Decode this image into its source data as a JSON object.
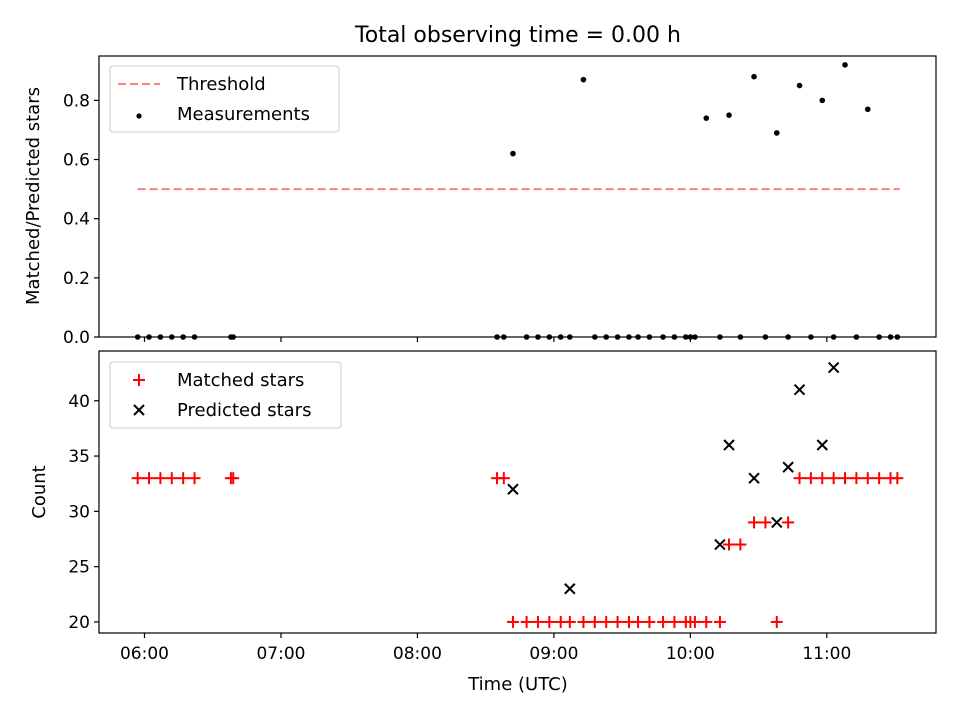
{
  "chart_data": [
    {
      "type": "scatter",
      "title": "Total observing time = 0.00 h",
      "xlabel": "",
      "ylabel": "Matched/Predicted stars",
      "xlim": [
        "05:40",
        "11:48"
      ],
      "ylim": [
        0,
        0.95
      ],
      "yticks": [
        0.0,
        0.2,
        0.4,
        0.6,
        0.8
      ],
      "ytick_labels": [
        "0.0",
        "0.2",
        "0.4",
        "0.6",
        "0.8"
      ],
      "grid": false,
      "legend": "upper-left",
      "legend_entries": [
        "Threshold",
        "Measurements"
      ],
      "threshold": {
        "name": "Threshold",
        "y": 0.5,
        "x_range": [
          "05:57",
          "11:32"
        ],
        "color": "#ff7f7f"
      },
      "series": [
        {
          "name": "Measurements",
          "color": "#000000",
          "x": [
            "05:57",
            "06:02",
            "06:07",
            "06:12",
            "06:17",
            "06:22",
            "06:38",
            "06:39",
            "08:35",
            "08:38",
            "08:42",
            "08:48",
            "08:53",
            "08:58",
            "09:03",
            "09:07",
            "09:13",
            "09:18",
            "09:23",
            "09:28",
            "09:33",
            "09:37",
            "09:42",
            "09:48",
            "09:53",
            "09:58",
            "10:00",
            "10:02",
            "10:07",
            "10:13",
            "10:17",
            "10:22",
            "10:28",
            "10:33",
            "10:38",
            "10:43",
            "10:48",
            "10:53",
            "10:58",
            "11:03",
            "11:08",
            "11:13",
            "11:18",
            "11:23",
            "11:28",
            "11:31"
          ],
          "y": [
            0,
            0,
            0,
            0,
            0,
            0,
            0,
            0,
            0,
            0,
            0.62,
            0,
            0,
            0,
            0,
            0,
            0.87,
            0,
            0,
            0,
            0,
            0,
            0,
            0,
            0,
            0,
            0,
            0,
            0.74,
            0,
            0.75,
            0,
            0.88,
            0,
            0.69,
            0,
            0.85,
            0,
            0.8,
            0,
            0.92,
            0,
            0.77,
            0,
            0,
            0
          ]
        }
      ]
    },
    {
      "type": "scatter",
      "title": "",
      "xlabel": "Time (UTC)",
      "ylabel": "Count",
      "xlim": [
        "05:40",
        "11:48"
      ],
      "ylim": [
        19,
        44.5
      ],
      "yticks": [
        20,
        25,
        30,
        35,
        40
      ],
      "ytick_labels": [
        "20",
        "25",
        "30",
        "35",
        "40"
      ],
      "xticks": [
        "06:00",
        "07:00",
        "08:00",
        "09:00",
        "10:00",
        "11:00"
      ],
      "xtick_labels": [
        "06:00",
        "07:00",
        "08:00",
        "09:00",
        "10:00",
        "11:00"
      ],
      "grid": false,
      "legend": "upper-left",
      "legend_entries": [
        "Matched stars",
        "Predicted stars"
      ],
      "series": [
        {
          "name": "Matched stars",
          "marker": "plus",
          "color": "#ff0000",
          "x": [
            "05:57",
            "06:02",
            "06:07",
            "06:12",
            "06:17",
            "06:22",
            "06:38",
            "06:39",
            "08:35",
            "08:38",
            "08:42",
            "08:48",
            "08:53",
            "08:58",
            "09:03",
            "09:07",
            "09:13",
            "09:18",
            "09:23",
            "09:28",
            "09:33",
            "09:37",
            "09:42",
            "09:48",
            "09:53",
            "09:58",
            "10:00",
            "10:02",
            "10:07",
            "10:13",
            "10:17",
            "10:22",
            "10:28",
            "10:33",
            "10:38",
            "10:43",
            "10:48",
            "10:53",
            "10:58",
            "11:03",
            "11:08",
            "11:13",
            "11:18",
            "11:23",
            "11:28",
            "11:31"
          ],
          "y": [
            33,
            33,
            33,
            33,
            33,
            33,
            33,
            33,
            33,
            33,
            20,
            20,
            20,
            20,
            20,
            20,
            20,
            20,
            20,
            20,
            20,
            20,
            20,
            20,
            20,
            20,
            20,
            20,
            20,
            20,
            27,
            27,
            29,
            29,
            20,
            29,
            33,
            33,
            33,
            33,
            33,
            33,
            33,
            33,
            33,
            33
          ]
        },
        {
          "name": "Predicted stars",
          "marker": "x",
          "color": "#000000",
          "x": [
            "08:42",
            "09:07",
            "10:13",
            "10:17",
            "10:28",
            "10:38",
            "10:43",
            "10:48",
            "10:58",
            "11:03"
          ],
          "y": [
            32,
            23,
            27,
            36,
            33,
            29,
            34,
            41,
            36,
            43
          ]
        }
      ]
    }
  ]
}
